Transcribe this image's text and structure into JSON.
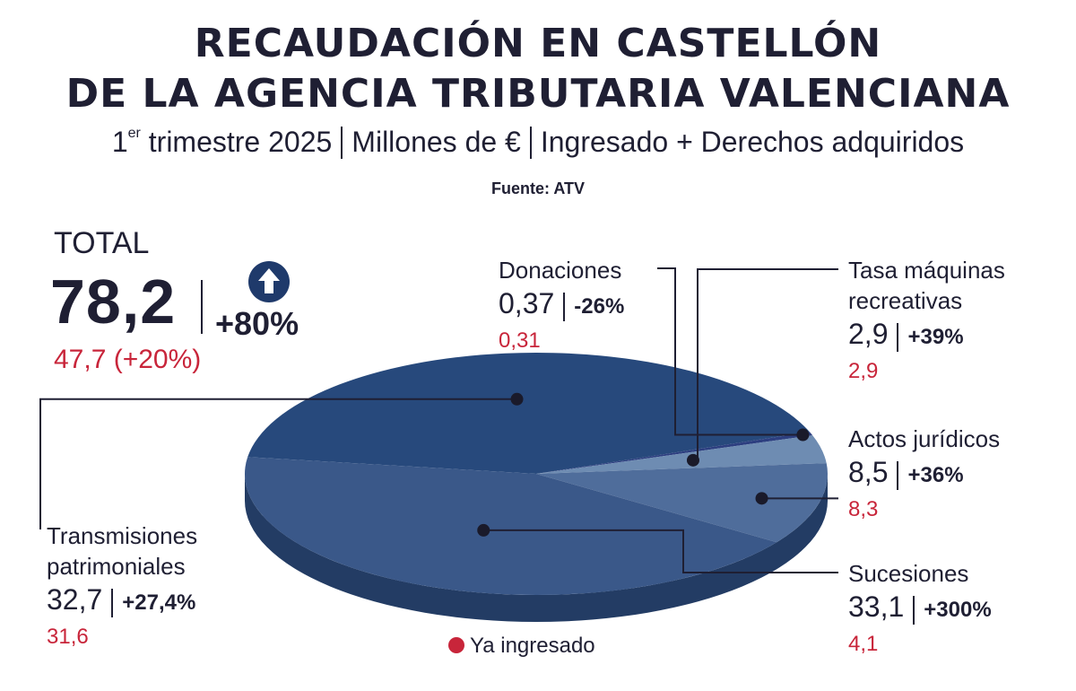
{
  "title_line1": "RECAUDACIÓN EN CASTELLÓN",
  "title_line2": "DE LA AGENCIA TRIBUTARIA VALENCIANA",
  "subtitle": {
    "period_number": "1",
    "period_sup": "er",
    "period_rest": " trimestre 2025",
    "units": "Millones de €",
    "measure": "Ingresado + Derechos adquiridos"
  },
  "source": "Fuente: ATV",
  "total": {
    "label": "TOTAL",
    "value": "78,2",
    "change": "+80%",
    "paid": "47,7 (+20%)"
  },
  "legend": {
    "label": "Ya ingresado",
    "color": "#c8253a"
  },
  "colors": {
    "transmisiones": "#27497c",
    "donaciones": "#2d3f80",
    "tasa": "#6e8cb2",
    "actos": "#4f6d9b",
    "sucesiones": "#3a5889",
    "side": "#233c64",
    "text": "#1f1f33",
    "red": "#c8253a"
  },
  "chart_data": {
    "type": "pie",
    "style": "3d",
    "title": "RECAUDACIÓN EN CASTELLÓN DE LA AGENCIA TRIBUTARIA VALENCIANA",
    "units": "Millones de €",
    "slices": [
      {
        "key": "transmisiones",
        "name_lines": [
          "Transmisiones",
          "patrimoniales"
        ],
        "value": 32.7,
        "value_label": "32,7",
        "change": "+27,4%",
        "paid": "31,6"
      },
      {
        "key": "donaciones",
        "name_lines": [
          "Donaciones"
        ],
        "value": 0.37,
        "value_label": "0,37",
        "change": "-26%",
        "paid": "0,31"
      },
      {
        "key": "tasa",
        "name_lines": [
          "Tasa máquinas",
          "recreativas"
        ],
        "value": 2.9,
        "value_label": "2,9",
        "change": "+39%",
        "paid": "2,9"
      },
      {
        "key": "actos",
        "name_lines": [
          "Actos jurídicos"
        ],
        "value": 8.5,
        "value_label": "8,5",
        "change": "+36%",
        "paid": "8,3"
      },
      {
        "key": "sucesiones",
        "name_lines": [
          "Sucesiones"
        ],
        "value": 33.1,
        "value_label": "33,1",
        "change": "+300%",
        "paid": "4,1"
      }
    ]
  }
}
